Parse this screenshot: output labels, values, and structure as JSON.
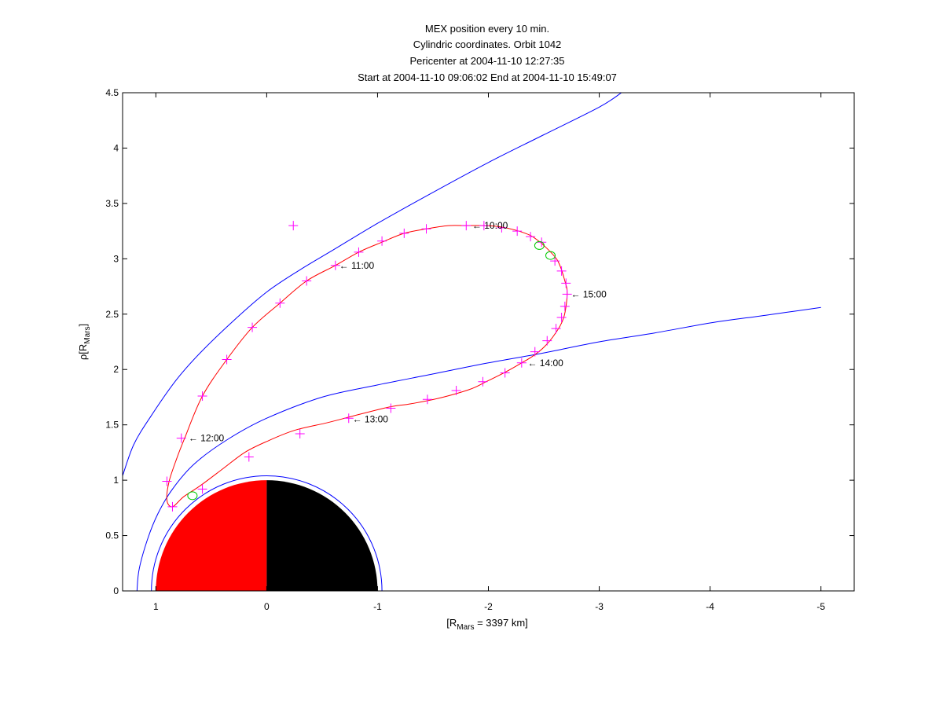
{
  "chart_data": {
    "type": "line",
    "title_lines": [
      "MEX position every 10 min.",
      "Cylindric coordinates. Orbit 1042",
      "Pericenter at 2004-11-10 12:27:35",
      "Start at 2004-11-10 09:06:02 End at 2004-11-10 15:49:07"
    ],
    "xlabel": {
      "prefix": "[R",
      "sub": "Mars",
      "suffix": " = 3397 km]"
    },
    "ylabel": {
      "prefix": "ρ[R",
      "sub": "Mars",
      "suffix": "]"
    },
    "xlim": [
      1.3,
      -5.3
    ],
    "ylim": [
      0,
      4.5
    ],
    "x_reversed": true,
    "xticks": [
      1,
      0,
      -1,
      -2,
      -3,
      -4,
      -5
    ],
    "xtick_labels": [
      "1",
      "0",
      "-1",
      "-2",
      "-3",
      "-4",
      "-5"
    ],
    "yticks": [
      0,
      0.5,
      1,
      1.5,
      2,
      2.5,
      3,
      3.5,
      4,
      4.5
    ],
    "ytick_labels": [
      "0",
      "0.5",
      "1",
      "1.5",
      "2",
      "2.5",
      "3",
      "3.5",
      "4",
      "4.5"
    ],
    "grid": false,
    "colors": {
      "orbit": "#ff0000",
      "markers": "#ff00ff",
      "boundaries": "#0000ff",
      "highlight_circles": "#00cc00",
      "mars_day": "#ff0000",
      "mars_night": "#000000"
    },
    "mars": {
      "radius": 1,
      "obstacle_radius": 1.04
    },
    "boundaries": [
      {
        "points": [
          [
            1.3,
            1.04
          ],
          [
            1.2,
            1.32
          ],
          [
            1.05,
            1.57
          ],
          [
            0.82,
            1.9
          ],
          [
            0.6,
            2.15
          ],
          [
            0.3,
            2.44
          ],
          [
            0.0,
            2.7
          ],
          [
            -0.3,
            2.9
          ],
          [
            -0.6,
            3.08
          ],
          [
            -1.0,
            3.32
          ],
          [
            -1.5,
            3.6
          ],
          [
            -2.0,
            3.87
          ],
          [
            -2.5,
            4.12
          ],
          [
            -3.0,
            4.37
          ],
          [
            -3.2,
            4.5
          ]
        ]
      },
      {
        "points": [
          [
            1.17,
            0
          ],
          [
            1.15,
            0.2
          ],
          [
            1.07,
            0.48
          ],
          [
            0.98,
            0.7
          ],
          [
            0.85,
            0.92
          ],
          [
            0.65,
            1.15
          ],
          [
            0.35,
            1.37
          ],
          [
            0.0,
            1.56
          ],
          [
            -0.5,
            1.75
          ],
          [
            -1.0,
            1.86
          ],
          [
            -1.5,
            1.96
          ],
          [
            -2.0,
            2.06
          ],
          [
            -2.5,
            2.15
          ],
          [
            -3.0,
            2.25
          ],
          [
            -3.5,
            2.33
          ],
          [
            -4.0,
            2.42
          ],
          [
            -4.5,
            2.49
          ],
          [
            -5.0,
            2.56
          ]
        ]
      }
    ],
    "orbit_path": [
      [
        -2.48,
        3.14
      ],
      [
        -2.62,
        2.99
      ],
      [
        -2.69,
        2.8
      ],
      [
        -2.71,
        2.68
      ],
      [
        -2.68,
        2.47
      ],
      [
        -2.6,
        2.32
      ],
      [
        -2.5,
        2.2
      ],
      [
        -2.4,
        2.12
      ],
      [
        -2.3,
        2.06
      ],
      [
        -2.16,
        1.98
      ],
      [
        -1.98,
        1.89
      ],
      [
        -1.83,
        1.82
      ],
      [
        -1.55,
        1.74
      ],
      [
        -1.3,
        1.69
      ],
      [
        -1.1,
        1.66
      ],
      [
        -0.78,
        1.58
      ],
      [
        -0.55,
        1.52
      ],
      [
        -0.25,
        1.45
      ],
      [
        0.0,
        1.35
      ],
      [
        0.2,
        1.25
      ],
      [
        0.4,
        1.1
      ],
      [
        0.6,
        0.95
      ],
      [
        0.75,
        0.85
      ],
      [
        0.85,
        0.76
      ],
      [
        0.9,
        0.82
      ],
      [
        0.88,
        0.99
      ],
      [
        0.81,
        1.2
      ],
      [
        0.74,
        1.38
      ],
      [
        0.58,
        1.76
      ],
      [
        0.36,
        2.09
      ],
      [
        0.13,
        2.38
      ],
      [
        -0.12,
        2.6
      ],
      [
        -0.36,
        2.8
      ],
      [
        -0.62,
        2.94
      ],
      [
        -0.83,
        3.06
      ],
      [
        -1.04,
        3.15
      ],
      [
        -1.24,
        3.23
      ],
      [
        -1.44,
        3.27
      ],
      [
        -1.64,
        3.3
      ],
      [
        -1.8,
        3.3
      ],
      [
        -1.96,
        3.3
      ],
      [
        -2.1,
        3.29
      ],
      [
        -2.24,
        3.26
      ],
      [
        -2.38,
        3.21
      ],
      [
        -2.48,
        3.14
      ]
    ],
    "markers": [
      [
        -1.8,
        3.3
      ],
      [
        -1.96,
        3.3
      ],
      [
        -2.12,
        3.28
      ],
      [
        -2.26,
        3.25
      ],
      [
        -2.38,
        3.2
      ],
      [
        -2.48,
        3.15
      ],
      [
        -0.24,
        3.3
      ],
      [
        -1.44,
        3.27
      ],
      [
        -1.24,
        3.23
      ],
      [
        -1.04,
        3.16
      ],
      [
        -0.83,
        3.06
      ],
      [
        -0.62,
        2.94
      ],
      [
        -0.36,
        2.8
      ],
      [
        -0.12,
        2.6
      ],
      [
        0.13,
        2.38
      ],
      [
        0.36,
        2.09
      ],
      [
        0.58,
        1.76
      ],
      [
        0.77,
        1.38
      ],
      [
        0.9,
        0.99
      ],
      [
        0.85,
        0.76
      ],
      [
        0.58,
        0.92
      ],
      [
        0.16,
        1.21
      ],
      [
        -0.3,
        1.42
      ],
      [
        -0.74,
        1.56
      ],
      [
        -1.12,
        1.65
      ],
      [
        -1.45,
        1.73
      ],
      [
        -1.71,
        1.81
      ],
      [
        -1.95,
        1.89
      ],
      [
        -2.15,
        1.97
      ],
      [
        -2.3,
        2.06
      ],
      [
        -2.42,
        2.16
      ],
      [
        -2.53,
        2.26
      ],
      [
        -2.61,
        2.37
      ],
      [
        -2.66,
        2.47
      ],
      [
        -2.69,
        2.57
      ],
      [
        -2.71,
        2.68
      ],
      [
        -2.7,
        2.78
      ],
      [
        -2.66,
        2.89
      ],
      [
        -2.6,
        2.98
      ]
    ],
    "highlight_circles": [
      [
        -2.46,
        3.12
      ],
      [
        -2.56,
        3.03
      ],
      [
        0.67,
        0.86
      ]
    ],
    "time_annotations": [
      {
        "label": "10:00",
        "x": -1.84,
        "y": 3.3
      },
      {
        "label": "11:00",
        "x": -0.64,
        "y": 2.94
      },
      {
        "label": "12:00",
        "x": 0.72,
        "y": 1.38
      },
      {
        "label": "13:00",
        "x": -0.76,
        "y": 1.55
      },
      {
        "label": "14:00",
        "x": -2.34,
        "y": 2.06
      },
      {
        "label": "15:00",
        "x": -2.73,
        "y": 2.68
      }
    ]
  }
}
